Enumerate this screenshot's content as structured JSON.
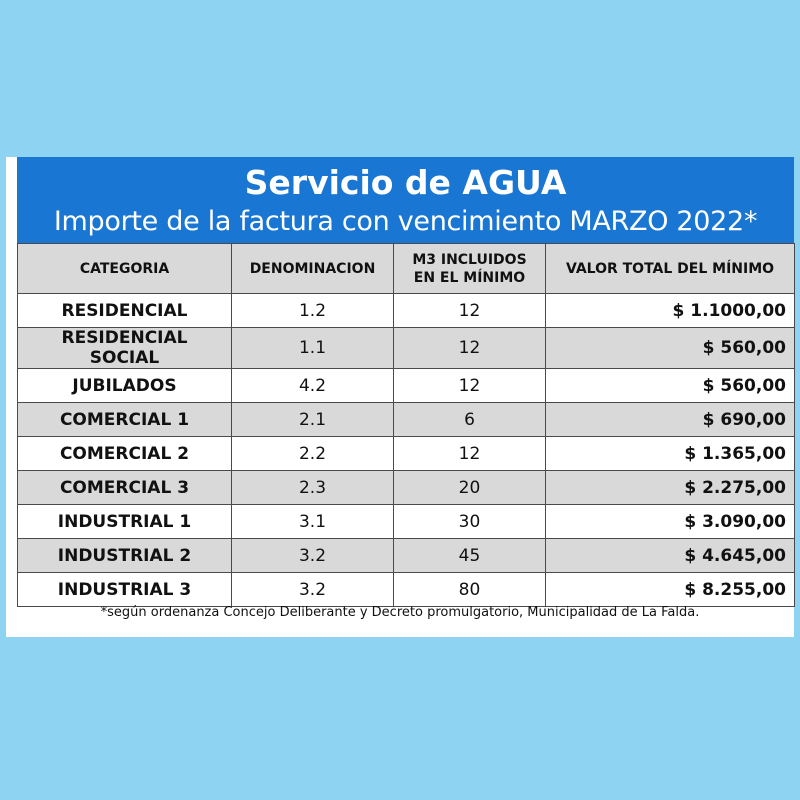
{
  "banner": {
    "title": "Servicio de AGUA",
    "subtitle": "Importe de la factura con vencimiento MARZO 2022*"
  },
  "table": {
    "headers": {
      "categoria": "CATEGORIA",
      "denominacion": "DENOMINACION",
      "m3_line1": "M3 INCLUIDOS",
      "m3_line2": "EN EL MÍNIMO",
      "valor": "VALOR TOTAL DEL MÍNIMO"
    },
    "rows": [
      {
        "categoria": "RESIDENCIAL",
        "denominacion": "1.2",
        "m3": "12",
        "valor": "$ 1.1000,00"
      },
      {
        "categoria": "RESIDENCIAL SOCIAL",
        "denominacion": "1.1",
        "m3": "12",
        "valor": "$ 560,00"
      },
      {
        "categoria": "JUBILADOS",
        "denominacion": "4.2",
        "m3": "12",
        "valor": "$ 560,00"
      },
      {
        "categoria": "COMERCIAL 1",
        "denominacion": "2.1",
        "m3": "6",
        "valor": "$ 690,00"
      },
      {
        "categoria": "COMERCIAL 2",
        "denominacion": "2.2",
        "m3": "12",
        "valor": "$ 1.365,00"
      },
      {
        "categoria": "COMERCIAL 3",
        "denominacion": "2.3",
        "m3": "20",
        "valor": "$ 2.275,00"
      },
      {
        "categoria": "INDUSTRIAL 1",
        "denominacion": "3.1",
        "m3": "30",
        "valor": "$ 3.090,00"
      },
      {
        "categoria": "INDUSTRIAL 2",
        "denominacion": "3.2",
        "m3": "45",
        "valor": "$ 4.645,00"
      },
      {
        "categoria": "INDUSTRIAL 3",
        "denominacion": "3.2",
        "m3": "80",
        "valor": "$ 8.255,00"
      }
    ]
  },
  "footnote": "*según ordenanza Concejo Deliberante y Decreto promulgatorio, Municipalidad de La Falda.",
  "colors": {
    "page_background": "#8fd3f2",
    "banner_background": "#1976d2",
    "shaded_row": "#d9d9d9"
  }
}
